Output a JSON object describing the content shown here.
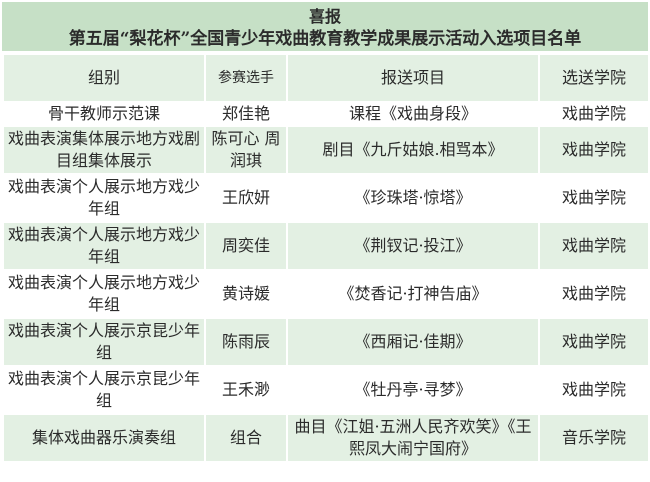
{
  "title": {
    "line1": "喜报",
    "line2": "第五届“梨花杯”全国青少年戏曲教育教学成果展示活动入选项目名单"
  },
  "header": {
    "group": "组别",
    "player": "参赛选手",
    "project": "报送项目",
    "college": "选送学院"
  },
  "rows": [
    {
      "group": "骨干教师示范课",
      "player": "郑佳艳",
      "project": "课程《戏曲身段》",
      "college": "戏曲学院"
    },
    {
      "group": "戏曲表演集体展示地方戏剧目组集体展示",
      "player": "陈可心 周润琪",
      "project": "剧目《九斤姑娘.相骂本》",
      "college": "戏曲学院"
    },
    {
      "group": "戏曲表演个人展示地方戏少年组",
      "player": "王欣妍",
      "project": "《珍珠塔·惊塔》",
      "college": "戏曲学院"
    },
    {
      "group": "戏曲表演个人展示地方戏少年组",
      "player": "周奕佳",
      "project": "《荆钗记·投江》",
      "college": "戏曲学院"
    },
    {
      "group": "戏曲表演个人展示地方戏少年组",
      "player": "黄诗媛",
      "project": "《焚香记·打神告庙》",
      "college": "戏曲学院"
    },
    {
      "group": "戏曲表演个人展示京昆少年组",
      "player": "陈雨辰",
      "project": "《西厢记·佳期》",
      "college": "戏曲学院"
    },
    {
      "group": "戏曲表演个人展示京昆少年组",
      "player": "王禾渺",
      "project": "《牡丹亭·寻梦》",
      "college": "戏曲学院"
    },
    {
      "group": "集体戏曲器乐演奏组",
      "player": "组合",
      "project": "曲目《江姐·五洲人民齐欢笑》《王熙凤大闹宁国府》",
      "college": "音乐学院"
    }
  ]
}
